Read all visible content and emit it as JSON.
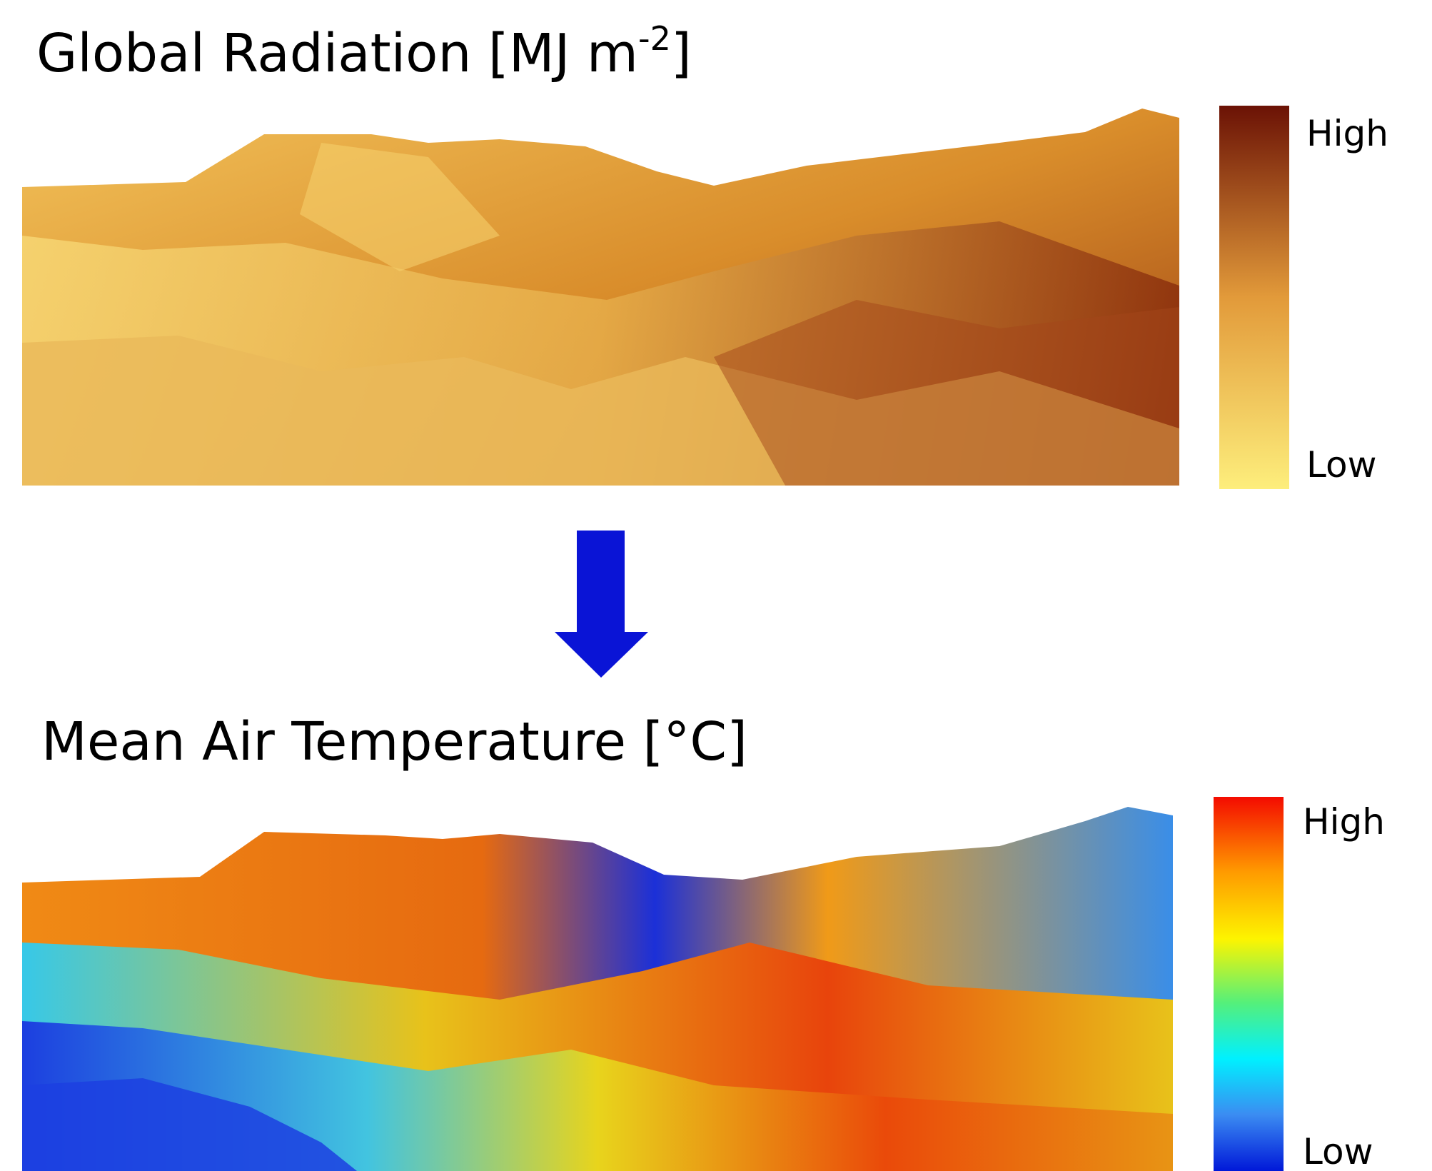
{
  "panels": [
    {
      "title": {
        "text": "Global Radiation [MJ m",
        "superscript": "-2",
        "suffix": "]"
      },
      "legend": {
        "high": "High",
        "low": "Low"
      }
    },
    {
      "title": {
        "text": "Mean Air Temperature [°C]"
      },
      "legend": {
        "high": "High",
        "low": "Low"
      }
    }
  ]
}
